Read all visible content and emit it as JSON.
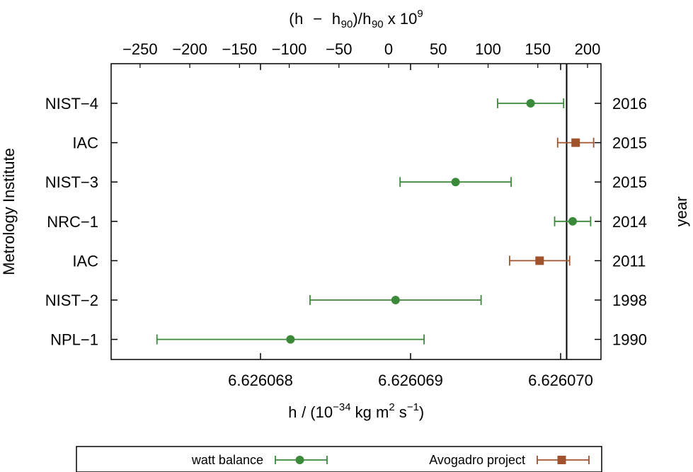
{
  "chart_data": {
    "type": "scatter",
    "x_bottom": {
      "label_var": "h",
      "label_unit_prefix": " / (10",
      "label_unit_exp": "−34",
      "label_unit_mid": " kg m",
      "label_unit_exp2": "2",
      "label_unit_mid2": " s",
      "label_unit_exp3": "−1",
      "label_unit_end": ")",
      "range": [
        6.6260672,
        6.6260705
      ],
      "ticks": [
        6.626068,
        6.626069,
        6.62607
      ],
      "tick_labels": [
        "6.626068",
        "6.626069",
        "6.626070"
      ]
    },
    "x_top": {
      "label_open": "(",
      "label_h": "h",
      "label_minus": " − ",
      "label_h90": "h",
      "label_sub": "90",
      "label_close": ")/",
      "label_h90b": "h",
      "label_subb": "90",
      "label_times": " x 10",
      "label_exp": "9",
      "tick_labels": [
        "−250",
        "−200",
        "−150",
        "−100",
        "−50",
        "0",
        "50",
        "100",
        "150",
        "200"
      ],
      "ticks": [
        -250,
        -200,
        -150,
        -100,
        -50,
        0,
        50,
        100,
        150,
        200
      ],
      "reference_h90": 6.626068854
    },
    "y_left_label": "Metrology Institute",
    "y_right_label": "year",
    "reference_line_x": 6.62607004,
    "categories": [
      "NIST−4",
      "IAC",
      "NIST−3",
      "NRC−1",
      "IAC",
      "NIST−2",
      "NPL−1"
    ],
    "years": [
      "2016",
      "2015",
      "2015",
      "2014",
      "2011",
      "1998",
      "1990"
    ],
    "series": [
      {
        "name": "watt balance",
        "color": "#3a8a3a",
        "marker": "circle",
        "points": [
          {
            "cat": 0,
            "x": 6.6260698,
            "xerr": 2.2e-07
          },
          {
            "cat": 2,
            "x": 6.6260693,
            "xerr": 3.7e-07
          },
          {
            "cat": 3,
            "x": 6.62607008,
            "xerr": 1.2e-07
          },
          {
            "cat": 5,
            "x": 6.6260689,
            "xerr": 5.7e-07
          },
          {
            "cat": 6,
            "x": 6.6260682,
            "xerr": 8.9e-07
          }
        ]
      },
      {
        "name": "Avogadro project",
        "color": "#a0522d",
        "marker": "square",
        "points": [
          {
            "cat": 1,
            "x": 6.6260701,
            "xerr": 1.2e-07
          },
          {
            "cat": 4,
            "x": 6.62606986,
            "xerr": 2e-07
          }
        ]
      }
    ],
    "legend": {
      "position": "bottom",
      "entries": [
        "watt balance",
        "Avogadro project"
      ]
    }
  }
}
